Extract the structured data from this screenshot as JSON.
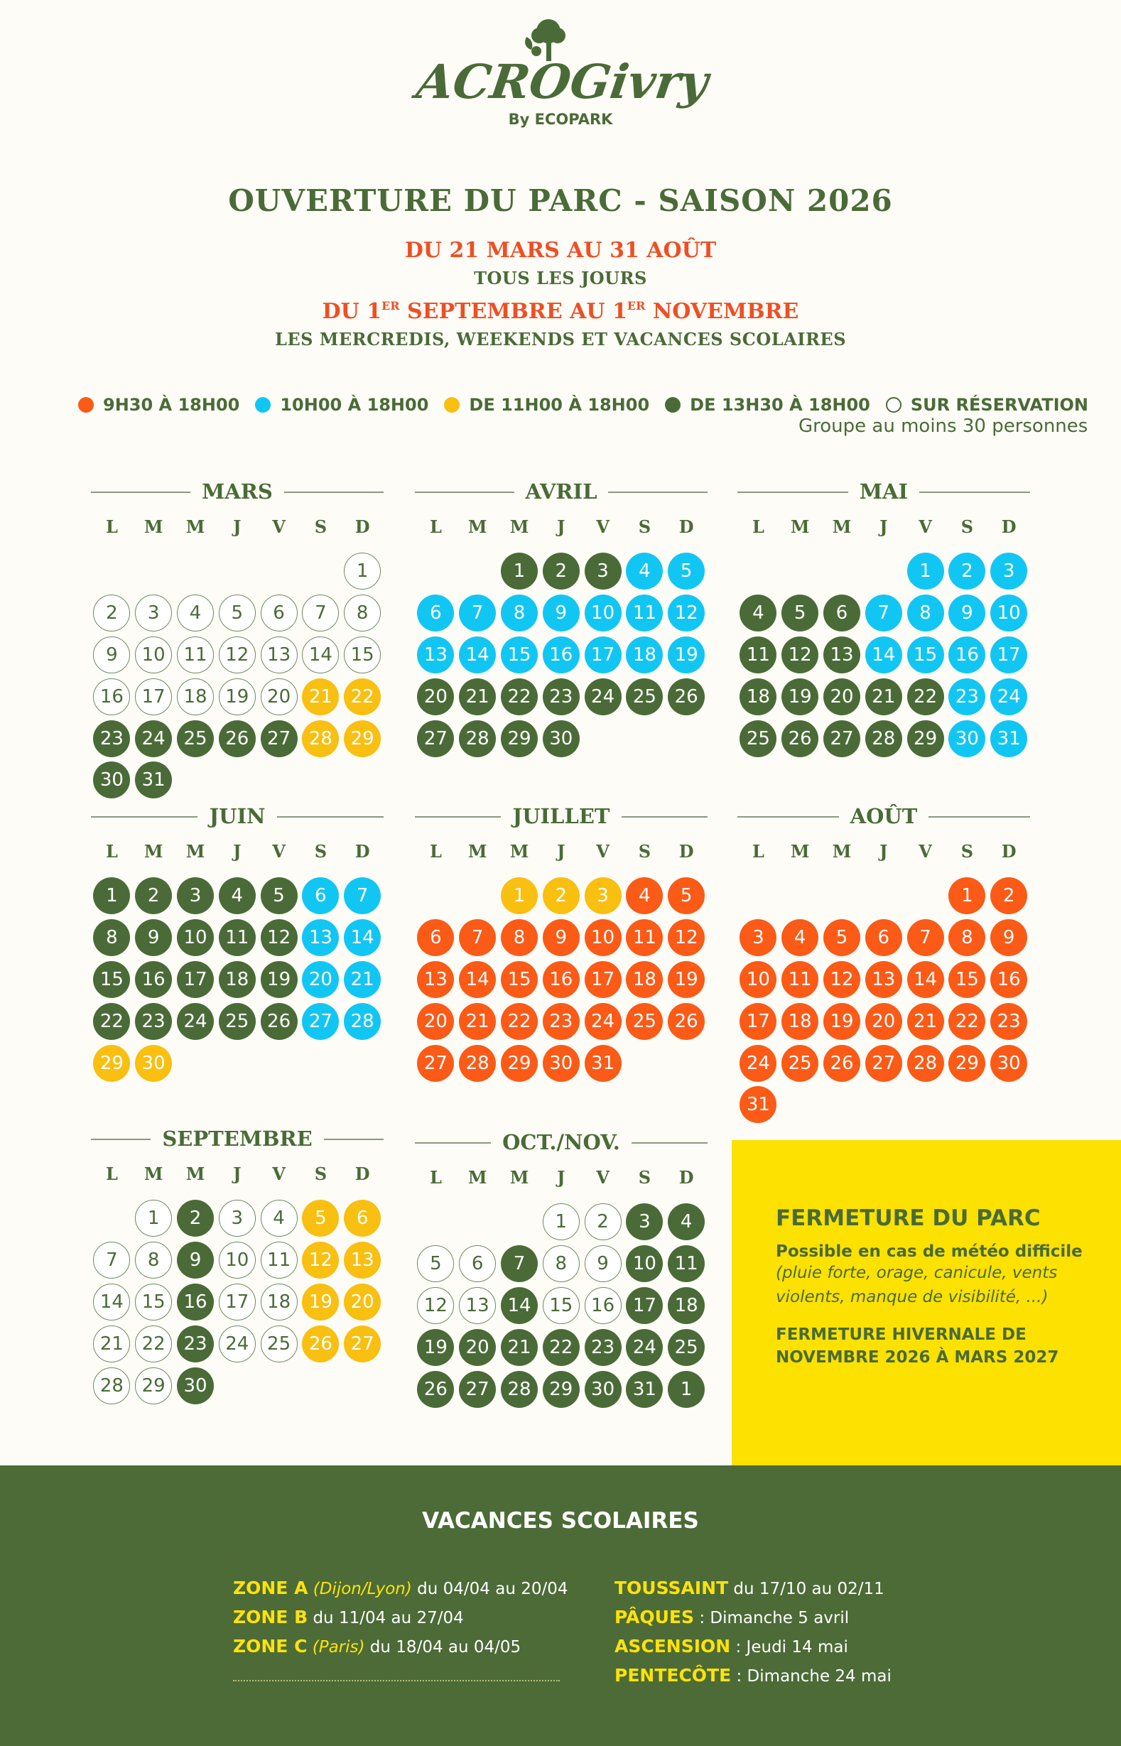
{
  "logo": {
    "name": "ACROGivry",
    "by_line": "By ECOPARK"
  },
  "header": {
    "title": "OUVERTURE DU PARC - SAISON 2026",
    "period1": "DU 21 MARS AU 31 AOÛT",
    "period1_sub": "TOUS LES JOURS",
    "period2_a": "DU 1",
    "period2_sup1": "ER",
    "period2_b": " SEPTEMBRE AU 1",
    "period2_sup2": "ER",
    "period2_c": " NOVEMBRE",
    "period2_sub": "LES MERCREDIS, WEEKENDS ET VACANCES SCOLAIRES"
  },
  "colors": {
    "orange": "#fb5a17",
    "blue": "#12c6f3",
    "yellow": "#f9bf11",
    "green": "#4a6b37",
    "reservation": "#ffffff"
  },
  "legend": [
    {
      "key": "orange",
      "label": "9H30 À 18H00"
    },
    {
      "key": "blue",
      "label": "10H00 À 18H00"
    },
    {
      "key": "yellow",
      "label": "DE 11H00 À 18H00"
    },
    {
      "key": "green",
      "label": "DE 13H30 À 18H00"
    },
    {
      "key": "reservation",
      "label": "SUR RÉSERVATION"
    }
  ],
  "legend_note": "Groupe au moins 30 personnes",
  "weekdays": [
    "L",
    "M",
    "M",
    "J",
    "V",
    "S",
    "D"
  ],
  "months": [
    {
      "name": "MARS",
      "start": 7,
      "days": "WWWWWWWWWWWWWWWWWWWWYYGGGGGYYGG"
    },
    {
      "name": "AVRIL",
      "start": 3,
      "days": "GGGBBBBBBBBBBBBBBBBGGGGGGGGGGG"
    },
    {
      "name": "MAI",
      "start": 5,
      "days": "BBBGGGBBBBGGGBBBBGGGGGBBGGGGGBB"
    },
    {
      "name": "JUIN",
      "start": 1,
      "days": "GGGGGBBGGGGGBBGGGGGBBGGGGGBBYY"
    },
    {
      "name": "JUILLET",
      "start": 3,
      "days": "YYYOOOOOOOOOOOOOOOOOOOOOOOOOOOO"
    },
    {
      "name": "AOÛT",
      "start": 6,
      "days": "OOOOOOOOOOOOOOOOOOOOOOOOOOOOOOO"
    },
    {
      "name": "SEPTEMBRE",
      "start": 2,
      "days": "WGWWYYWWGWWYYWWGWWYYWWGWWYYWWG"
    },
    {
      "name": "OCT./NOV.",
      "start": 4,
      "days": "WWGGWWGWWGGWWGWWGGGGGGGGGGGGGGGG",
      "labels": [
        1,
        2,
        3,
        4,
        5,
        6,
        7,
        8,
        9,
        10,
        11,
        12,
        13,
        14,
        15,
        16,
        17,
        18,
        19,
        20,
        21,
        22,
        23,
        24,
        25,
        26,
        27,
        28,
        29,
        30,
        31,
        1
      ]
    }
  ],
  "closing": {
    "title": "FERMETURE DU PARC",
    "subtitle": "Possible en cas de météo difficile",
    "examples": "(pluie forte, orage, canicule, vents violents, manque de visibilité, ...)",
    "winter": "FERMETURE HIVERNALE DE NOVEMBRE 2026 À MARS 2027"
  },
  "holidays": {
    "title": "VACANCES SCOLAIRES",
    "zones": [
      {
        "zone": "ZONE A",
        "cities": "(Dijon/Lyon)",
        "dates": " du 04/04 au 20/04"
      },
      {
        "zone": "ZONE B",
        "cities": "",
        "dates": " du 11/04 au 27/04"
      },
      {
        "zone": "ZONE C",
        "cities": "(Paris)",
        "dates": " du 18/04 au 04/05"
      }
    ],
    "fetes": [
      {
        "name": "TOUSSAINT",
        "detail": " du 17/10 au 02/11"
      },
      {
        "name": "PÂQUES",
        "detail": " : Dimanche 5 avril"
      },
      {
        "name": "ASCENSION",
        "detail": " : Jeudi 14 mai"
      },
      {
        "name": "PENTECÔTE",
        "detail": " : Dimanche 24 mai"
      }
    ]
  }
}
